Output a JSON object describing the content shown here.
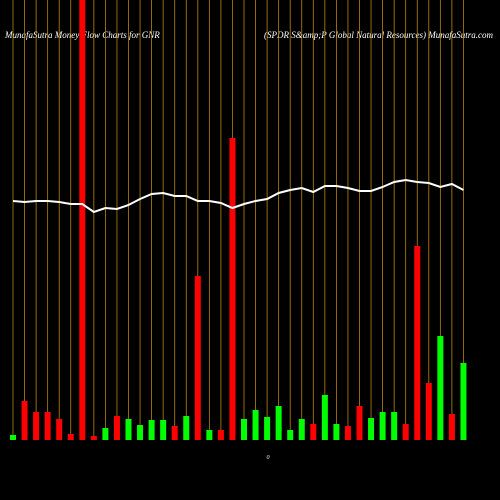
{
  "chart_data": {
    "type": "bar",
    "title": "MunafaSutra  Money Flow  Charts for GNR",
    "subtitle": "(SPDR S&amp;P Global Natural Resources) MunafaSutra.com",
    "annotation": "0",
    "categories": [
      null,
      null,
      null,
      null,
      null,
      null,
      null,
      null,
      null,
      null,
      null,
      null,
      null,
      null,
      null,
      null,
      null,
      null,
      null,
      null,
      null,
      null,
      null,
      null,
      null,
      null,
      null,
      null,
      null,
      null,
      null,
      null,
      null,
      null,
      null,
      null,
      null,
      null,
      null,
      null
    ],
    "values": [
      5,
      39,
      28,
      28,
      21,
      6,
      440,
      4,
      12,
      24,
      21,
      15,
      20,
      20,
      14,
      24,
      164,
      10,
      10,
      302,
      21,
      30,
      23,
      34,
      10,
      21,
      16,
      45,
      16,
      14,
      34,
      22,
      28,
      28,
      16,
      194,
      57,
      104,
      26,
      77
    ],
    "colors": [
      "#00ff00",
      "#ff0000",
      "#ff0000",
      "#ff0000",
      "#ff0000",
      "#ff0000",
      "#ff0000",
      "#ff0000",
      "#00ff00",
      "#ff0000",
      "#00ff00",
      "#00ff00",
      "#00ff00",
      "#00ff00",
      "#ff0000",
      "#00ff00",
      "#ff0000",
      "#00ff00",
      "#ff0000",
      "#ff0000",
      "#00ff00",
      "#00ff00",
      "#00ff00",
      "#00ff00",
      "#00ff00",
      "#00ff00",
      "#ff0000",
      "#00ff00",
      "#00ff00",
      "#ff0000",
      "#ff0000",
      "#00ff00",
      "#00ff00",
      "#00ff00",
      "#ff0000",
      "#ff0000",
      "#ff0000",
      "#00ff00",
      "#ff0000",
      "#00ff00"
    ],
    "line": {
      "color": "#ffffff",
      "values": [
        239,
        238,
        239,
        239,
        238,
        236,
        236,
        228,
        232,
        231,
        235,
        241,
        246,
        247,
        244,
        244,
        239,
        239,
        237,
        232,
        236,
        239,
        241,
        247,
        250,
        252,
        248,
        254,
        254,
        252,
        249,
        249,
        253,
        258,
        260,
        258,
        257,
        253,
        256,
        250
      ]
    },
    "ylim": [
      0,
      440
    ]
  }
}
